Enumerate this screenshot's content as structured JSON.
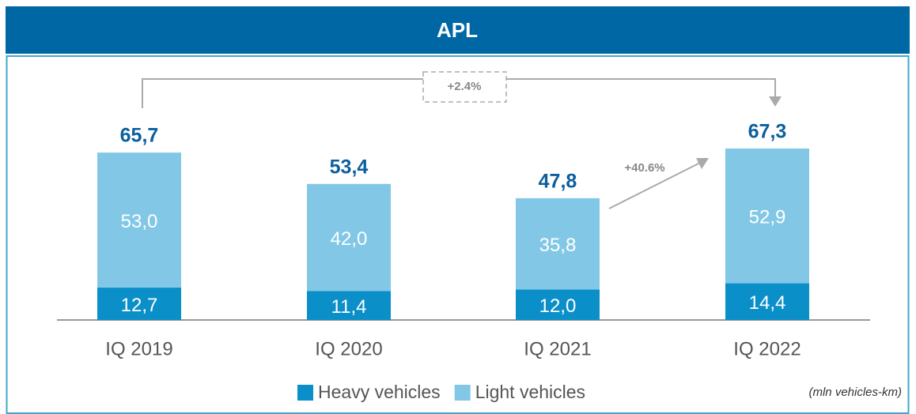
{
  "chart_data": {
    "type": "bar",
    "stacked": true,
    "title": "APL",
    "categories": [
      "IQ 2019",
      "IQ 2020",
      "IQ 2021",
      "IQ 2022"
    ],
    "series": [
      {
        "name": "Heavy vehicles",
        "color": "#0a8fc9",
        "values": [
          12.7,
          11.4,
          12.0,
          14.4
        ],
        "value_labels": [
          "12,7",
          "11,4",
          "12,0",
          "14,4"
        ]
      },
      {
        "name": "Light vehicles",
        "color": "#82c8e6",
        "values": [
          53.0,
          42.0,
          35.8,
          52.9
        ],
        "value_labels": [
          "53,0",
          "42,0",
          "35,8",
          "52,9"
        ]
      }
    ],
    "totals": {
      "values": [
        65.7,
        53.4,
        47.8,
        67.3
      ],
      "value_labels": [
        "65,7",
        "53,4",
        "47,8",
        "67,3"
      ]
    },
    "ylim": [
      0,
      80
    ],
    "annotations": [
      "+2.4%",
      "+40.6%"
    ],
    "unit_note": "(mln vehicles-km)",
    "legend": "bottom"
  }
}
